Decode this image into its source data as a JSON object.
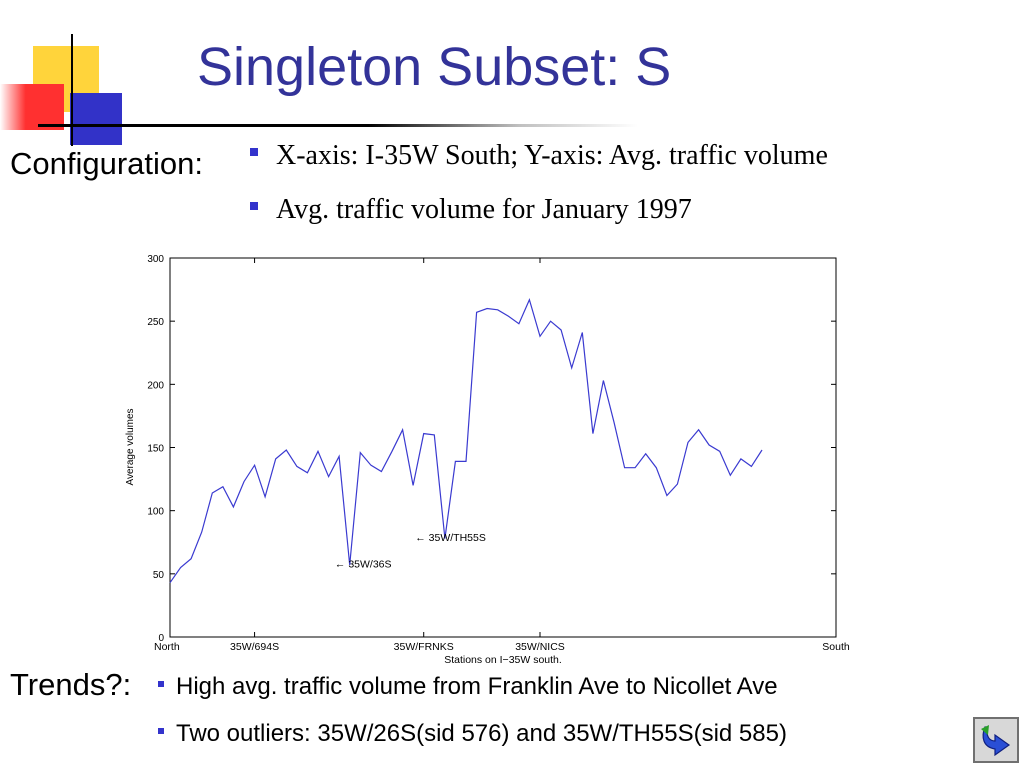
{
  "slide": {
    "title": "Singleton Subset: S",
    "configuration_label": "Configuration:",
    "configuration_items": [
      "X-axis: I-35W South; Y-axis: Avg. traffic volume",
      "Avg. traffic volume for January 1997"
    ],
    "trends_label": "Trends?:",
    "trends_items": [
      "High avg. traffic volume from Franklin Ave to Nicollet Ave",
      "Two outliers: 35W/26S(sid 576) and 35W/TH55S(sid 585)"
    ],
    "accent_color": "#333399",
    "nav_icon": "return-arrow-icon"
  },
  "chart_data": {
    "type": "line",
    "title": "",
    "xlabel": "Stations on I−35W south.",
    "ylabel": "Average volumes",
    "xlim": [
      0,
      63
    ],
    "ylim": [
      0,
      300
    ],
    "yticks": [
      0,
      50,
      100,
      150,
      200,
      250,
      300
    ],
    "xtick_labels": [
      {
        "x": 0,
        "label": "North"
      },
      {
        "x": 8,
        "label": "35W/694S"
      },
      {
        "x": 24,
        "label": "35W/FRNKS"
      },
      {
        "x": 35,
        "label": "35W/NICS"
      },
      {
        "x": 63,
        "label": "South"
      }
    ],
    "grid": false,
    "series": [
      {
        "color": "#3a3ad0",
        "x": [
          0,
          1,
          2,
          3,
          4,
          5,
          6,
          7,
          8,
          9,
          10,
          11,
          12,
          13,
          14,
          15,
          16,
          17,
          18,
          19,
          20,
          21,
          22,
          23,
          24,
          25,
          26,
          27,
          28,
          29,
          30,
          31,
          32,
          33,
          34,
          35,
          36,
          37,
          38,
          39,
          40,
          41,
          42,
          43,
          44,
          45,
          46,
          47,
          48,
          49,
          50,
          51,
          52,
          53,
          54,
          55,
          56
        ],
        "values": [
          43,
          55,
          62,
          83,
          114,
          119,
          103,
          123,
          136,
          111,
          141,
          148,
          135,
          130,
          147,
          127,
          143,
          57,
          146,
          136,
          131,
          147,
          164,
          120,
          161,
          160,
          78,
          139,
          139,
          257,
          260,
          259,
          254,
          248,
          267,
          238,
          250,
          243,
          213,
          241,
          161,
          203,
          170,
          134,
          134,
          145,
          134,
          112,
          121,
          154,
          164,
          152,
          147,
          128,
          141,
          135,
          148
        ]
      }
    ],
    "annotations": [
      {
        "text": "← 35W/36S",
        "x": 15.6,
        "y": 58
      },
      {
        "text": "← 35W/TH55S",
        "x": 23.2,
        "y": 79
      }
    ]
  }
}
